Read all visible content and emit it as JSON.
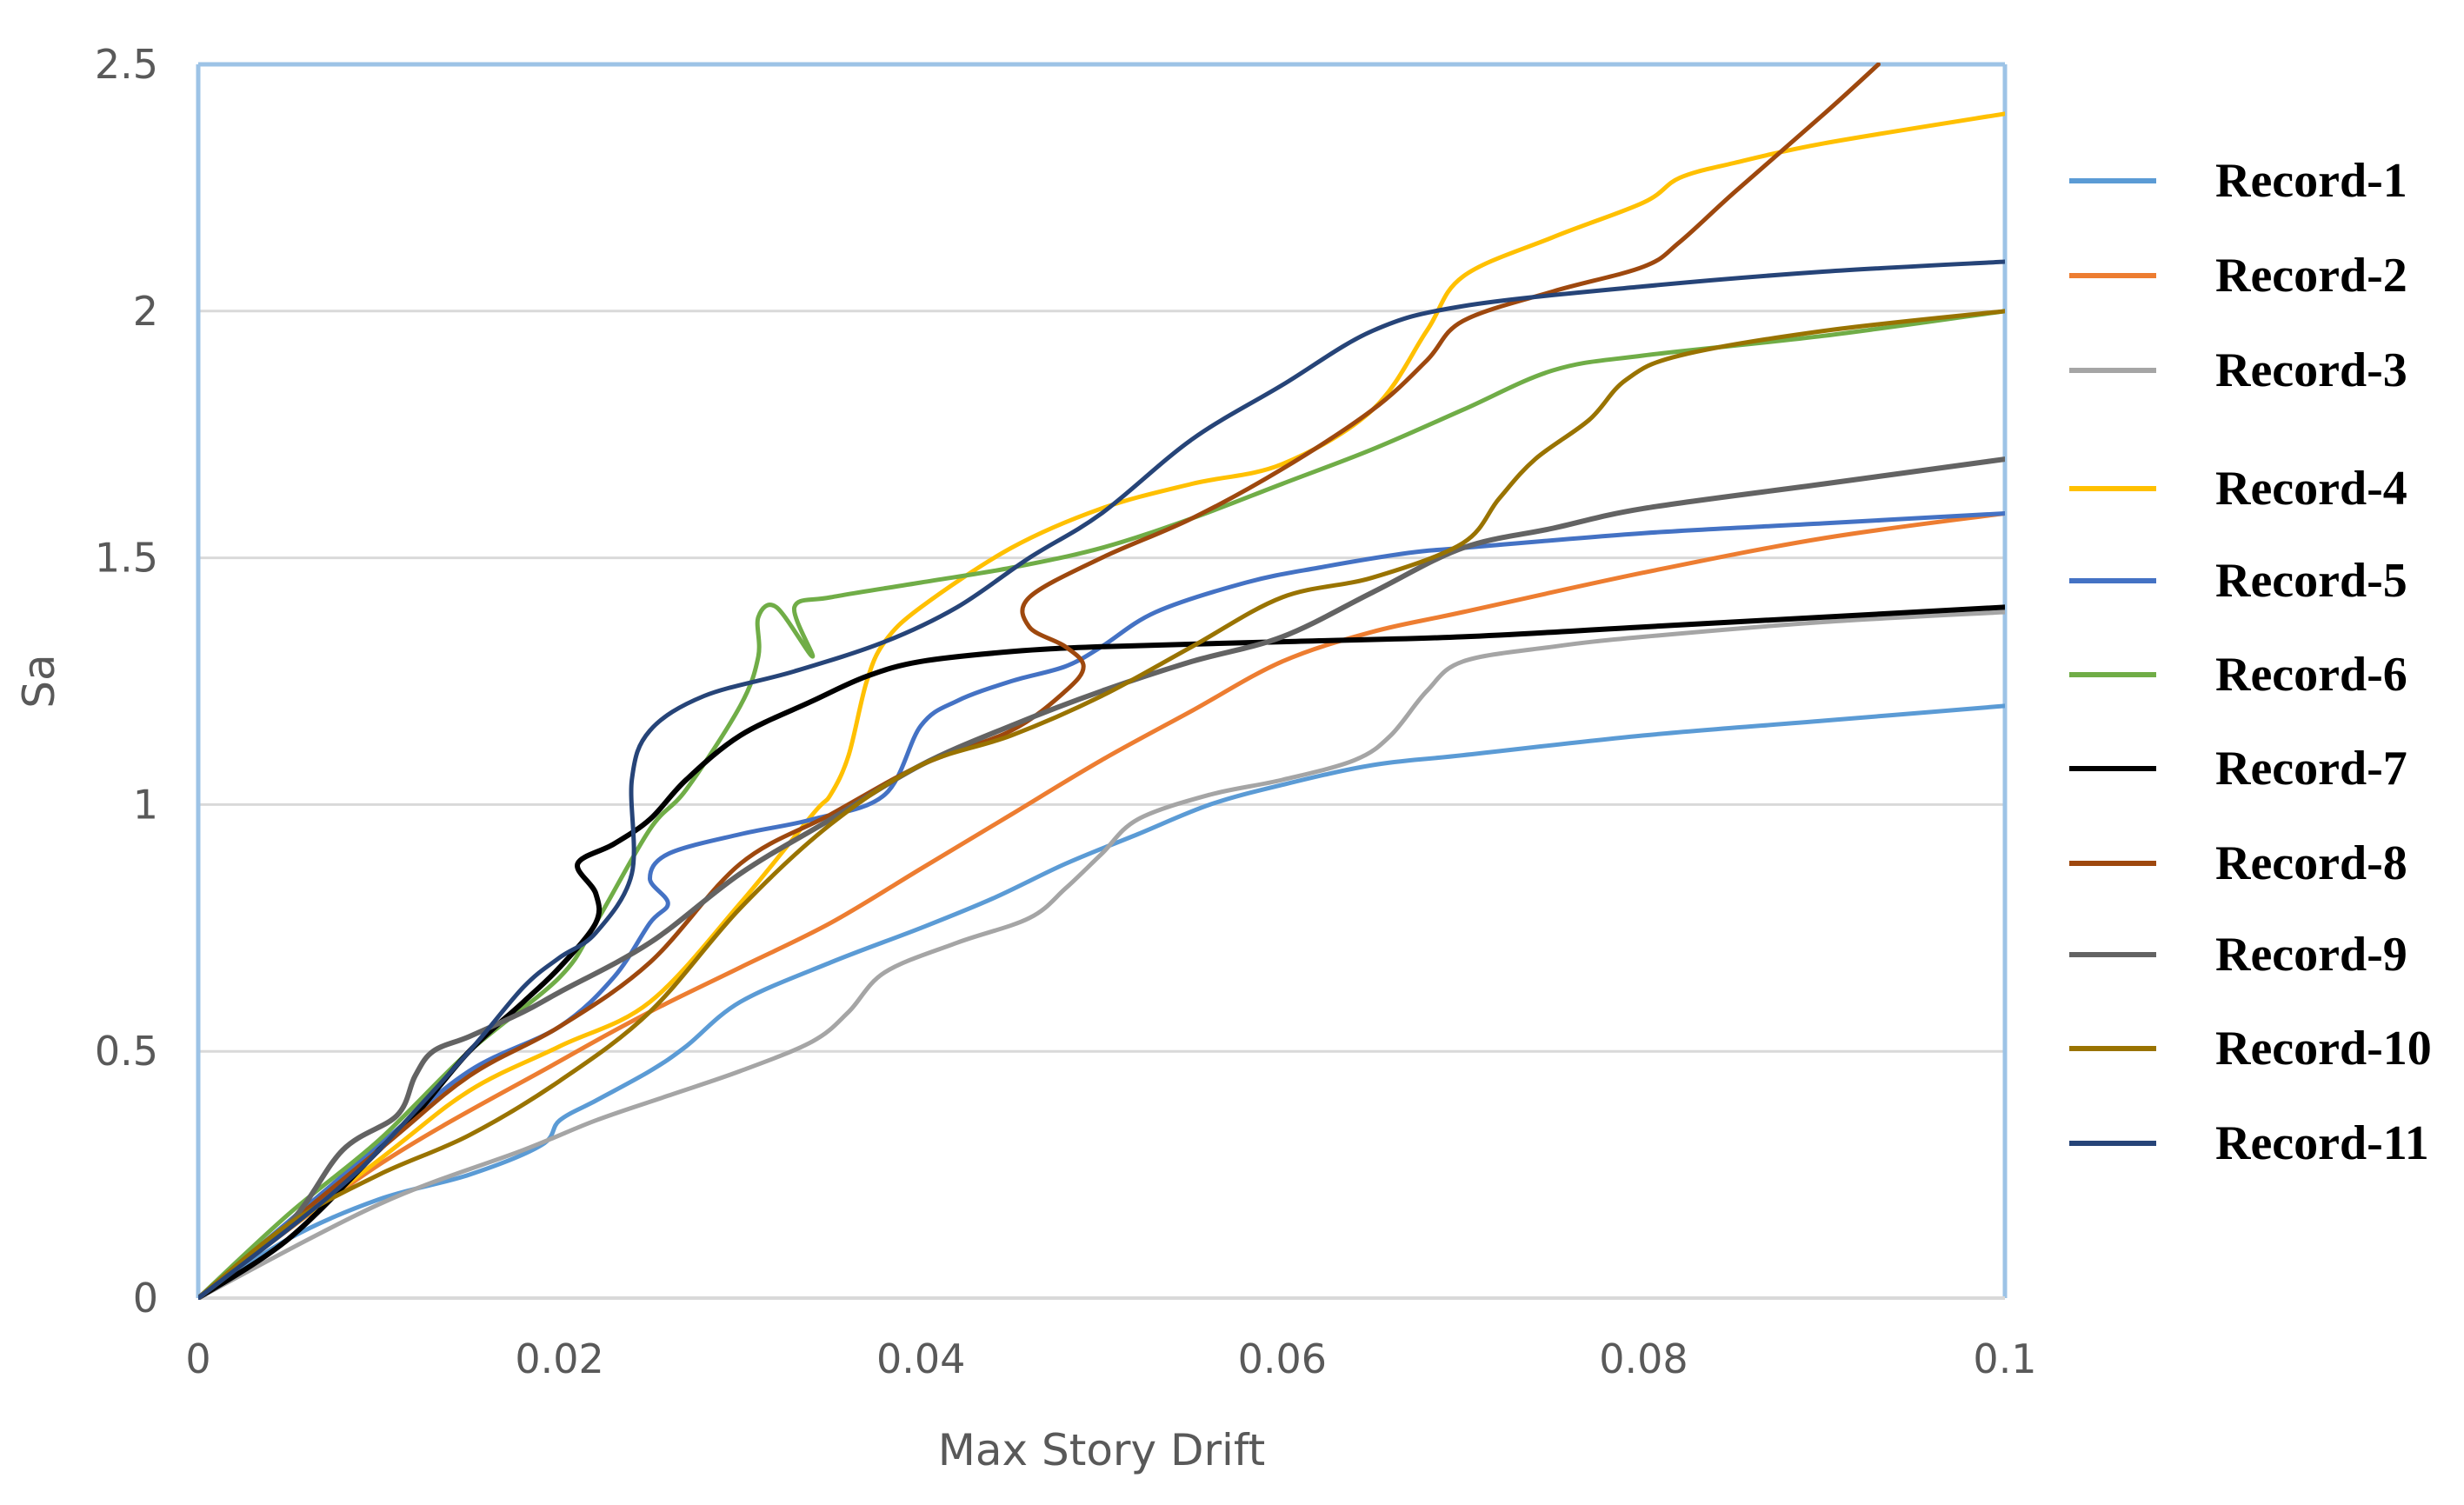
{
  "chart_data": {
    "type": "line",
    "title": "",
    "xlabel": "Max Story Drift",
    "ylabel": "Sa",
    "xlim": [
      0,
      0.1
    ],
    "ylim": [
      0,
      2.5
    ],
    "x_ticks": [
      0,
      0.02,
      0.04,
      0.06,
      0.08,
      0.1
    ],
    "x_tick_labels": [
      "0",
      "0.02",
      "0.04",
      "0.06",
      "0.08",
      "0.1"
    ],
    "y_ticks": [
      0,
      0.5,
      1,
      1.5,
      2,
      2.5
    ],
    "y_tick_labels": [
      "0",
      "0.5",
      "1",
      "1.5",
      "2",
      "2.5"
    ],
    "grid": "horizontal",
    "legend_position": "right",
    "series": [
      {
        "name": "Record-1",
        "color": "#5B9BD5",
        "points": [
          [
            0,
            0
          ],
          [
            0.005,
            0.12
          ],
          [
            0.01,
            0.2
          ],
          [
            0.015,
            0.25
          ],
          [
            0.019,
            0.31
          ],
          [
            0.02,
            0.36
          ],
          [
            0.022,
            0.4
          ],
          [
            0.025,
            0.46
          ],
          [
            0.027,
            0.51
          ],
          [
            0.03,
            0.6
          ],
          [
            0.035,
            0.68
          ],
          [
            0.04,
            0.75
          ],
          [
            0.044,
            0.81
          ],
          [
            0.048,
            0.88
          ],
          [
            0.052,
            0.94
          ],
          [
            0.056,
            1.0
          ],
          [
            0.06,
            1.04
          ],
          [
            0.065,
            1.08
          ],
          [
            0.07,
            1.1
          ],
          [
            0.08,
            1.14
          ],
          [
            0.09,
            1.17
          ],
          [
            0.1,
            1.2
          ]
        ]
      },
      {
        "name": "Record-2",
        "color": "#ED7D31",
        "points": [
          [
            0,
            0
          ],
          [
            0.01,
            0.27
          ],
          [
            0.02,
            0.48
          ],
          [
            0.025,
            0.58
          ],
          [
            0.03,
            0.67
          ],
          [
            0.035,
            0.76
          ],
          [
            0.04,
            0.87
          ],
          [
            0.045,
            0.98
          ],
          [
            0.05,
            1.09
          ],
          [
            0.055,
            1.19
          ],
          [
            0.06,
            1.29
          ],
          [
            0.065,
            1.35
          ],
          [
            0.07,
            1.39
          ],
          [
            0.08,
            1.47
          ],
          [
            0.09,
            1.54
          ],
          [
            0.1,
            1.59
          ]
        ]
      },
      {
        "name": "Record-3",
        "color": "#A5A5A5",
        "points": [
          [
            0,
            0
          ],
          [
            0.01,
            0.19
          ],
          [
            0.018,
            0.3
          ],
          [
            0.022,
            0.36
          ],
          [
            0.026,
            0.41
          ],
          [
            0.03,
            0.46
          ],
          [
            0.034,
            0.52
          ],
          [
            0.036,
            0.58
          ],
          [
            0.038,
            0.66
          ],
          [
            0.042,
            0.72
          ],
          [
            0.046,
            0.77
          ],
          [
            0.048,
            0.83
          ],
          [
            0.05,
            0.9
          ],
          [
            0.052,
            0.97
          ],
          [
            0.056,
            1.02
          ],
          [
            0.06,
            1.05
          ],
          [
            0.064,
            1.09
          ],
          [
            0.066,
            1.14
          ],
          [
            0.068,
            1.23
          ],
          [
            0.07,
            1.29
          ],
          [
            0.075,
            1.32
          ],
          [
            0.08,
            1.34
          ],
          [
            0.09,
            1.37
          ],
          [
            0.1,
            1.39
          ]
        ]
      },
      {
        "name": "Record-4",
        "color": "#FFC000",
        "points": [
          [
            0,
            0
          ],
          [
            0.01,
            0.28
          ],
          [
            0.015,
            0.42
          ],
          [
            0.02,
            0.51
          ],
          [
            0.025,
            0.6
          ],
          [
            0.03,
            0.8
          ],
          [
            0.034,
            0.98
          ],
          [
            0.035,
            1.02
          ],
          [
            0.036,
            1.1
          ],
          [
            0.037,
            1.25
          ],
          [
            0.038,
            1.33
          ],
          [
            0.04,
            1.4
          ],
          [
            0.045,
            1.52
          ],
          [
            0.05,
            1.6
          ],
          [
            0.055,
            1.65
          ],
          [
            0.06,
            1.69
          ],
          [
            0.065,
            1.8
          ],
          [
            0.068,
            1.96
          ],
          [
            0.07,
            2.07
          ],
          [
            0.075,
            2.15
          ],
          [
            0.08,
            2.22
          ],
          [
            0.082,
            2.27
          ],
          [
            0.085,
            2.3
          ],
          [
            0.09,
            2.34
          ],
          [
            0.1,
            2.4
          ]
        ]
      },
      {
        "name": "Record-5",
        "color": "#4472C4",
        "points": [
          [
            0,
            0
          ],
          [
            0.01,
            0.31
          ],
          [
            0.015,
            0.46
          ],
          [
            0.02,
            0.55
          ],
          [
            0.023,
            0.65
          ],
          [
            0.025,
            0.76
          ],
          [
            0.026,
            0.8
          ],
          [
            0.025,
            0.85
          ],
          [
            0.026,
            0.9
          ],
          [
            0.03,
            0.94
          ],
          [
            0.034,
            0.97
          ],
          [
            0.038,
            1.02
          ],
          [
            0.04,
            1.16
          ],
          [
            0.042,
            1.21
          ],
          [
            0.045,
            1.25
          ],
          [
            0.048,
            1.28
          ],
          [
            0.05,
            1.32
          ],
          [
            0.053,
            1.39
          ],
          [
            0.058,
            1.45
          ],
          [
            0.062,
            1.48
          ],
          [
            0.067,
            1.51
          ],
          [
            0.07,
            1.52
          ],
          [
            0.08,
            1.55
          ],
          [
            0.09,
            1.57
          ],
          [
            0.1,
            1.59
          ]
        ]
      },
      {
        "name": "Record-6",
        "color": "#70AD47",
        "points": [
          [
            0,
            0
          ],
          [
            0.005,
            0.17
          ],
          [
            0.01,
            0.32
          ],
          [
            0.015,
            0.5
          ],
          [
            0.02,
            0.65
          ],
          [
            0.022,
            0.76
          ],
          [
            0.025,
            0.95
          ],
          [
            0.027,
            1.03
          ],
          [
            0.03,
            1.2
          ],
          [
            0.031,
            1.3
          ],
          [
            0.031,
            1.38
          ],
          [
            0.032,
            1.4
          ],
          [
            0.034,
            1.3
          ],
          [
            0.033,
            1.4
          ],
          [
            0.035,
            1.42
          ],
          [
            0.04,
            1.45
          ],
          [
            0.045,
            1.48
          ],
          [
            0.05,
            1.52
          ],
          [
            0.055,
            1.58
          ],
          [
            0.06,
            1.65
          ],
          [
            0.065,
            1.72
          ],
          [
            0.07,
            1.8
          ],
          [
            0.075,
            1.88
          ],
          [
            0.08,
            1.91
          ],
          [
            0.09,
            1.95
          ],
          [
            0.1,
            2.0
          ]
        ]
      },
      {
        "name": "Record-7",
        "color": "#000000",
        "points": [
          [
            0,
            0
          ],
          [
            0.005,
            0.12
          ],
          [
            0.01,
            0.3
          ],
          [
            0.012,
            0.37
          ],
          [
            0.015,
            0.5
          ],
          [
            0.018,
            0.6
          ],
          [
            0.02,
            0.67
          ],
          [
            0.022,
            0.76
          ],
          [
            0.022,
            0.82
          ],
          [
            0.021,
            0.88
          ],
          [
            0.023,
            0.92
          ],
          [
            0.025,
            0.97
          ],
          [
            0.027,
            1.05
          ],
          [
            0.03,
            1.14
          ],
          [
            0.034,
            1.21
          ],
          [
            0.037,
            1.26
          ],
          [
            0.04,
            1.29
          ],
          [
            0.045,
            1.31
          ],
          [
            0.05,
            1.32
          ],
          [
            0.06,
            1.33
          ],
          [
            0.07,
            1.34
          ],
          [
            0.08,
            1.36
          ],
          [
            0.09,
            1.38
          ],
          [
            0.1,
            1.4
          ]
        ]
      },
      {
        "name": "Record-8",
        "color": "#9E480E",
        "points": [
          [
            0,
            0
          ],
          [
            0.01,
            0.3
          ],
          [
            0.015,
            0.45
          ],
          [
            0.02,
            0.55
          ],
          [
            0.025,
            0.68
          ],
          [
            0.03,
            0.88
          ],
          [
            0.035,
            0.98
          ],
          [
            0.04,
            1.08
          ],
          [
            0.045,
            1.15
          ],
          [
            0.048,
            1.23
          ],
          [
            0.049,
            1.28
          ],
          [
            0.048,
            1.32
          ],
          [
            0.046,
            1.36
          ],
          [
            0.046,
            1.42
          ],
          [
            0.05,
            1.5
          ],
          [
            0.055,
            1.58
          ],
          [
            0.06,
            1.68
          ],
          [
            0.065,
            1.8
          ],
          [
            0.068,
            1.9
          ],
          [
            0.07,
            1.98
          ],
          [
            0.075,
            2.04
          ],
          [
            0.08,
            2.09
          ],
          [
            0.082,
            2.14
          ],
          [
            0.085,
            2.24
          ],
          [
            0.09,
            2.4
          ],
          [
            0.093,
            2.5
          ]
        ]
      },
      {
        "name": "Record-9",
        "color": "#636363",
        "points": [
          [
            0,
            0
          ],
          [
            0.005,
            0.15
          ],
          [
            0.008,
            0.3
          ],
          [
            0.011,
            0.37
          ],
          [
            0.012,
            0.45
          ],
          [
            0.013,
            0.5
          ],
          [
            0.015,
            0.53
          ],
          [
            0.018,
            0.58
          ],
          [
            0.02,
            0.62
          ],
          [
            0.025,
            0.72
          ],
          [
            0.03,
            0.86
          ],
          [
            0.035,
            0.97
          ],
          [
            0.04,
            1.08
          ],
          [
            0.045,
            1.16
          ],
          [
            0.05,
            1.23
          ],
          [
            0.055,
            1.29
          ],
          [
            0.06,
            1.34
          ],
          [
            0.065,
            1.43
          ],
          [
            0.07,
            1.52
          ],
          [
            0.075,
            1.56
          ],
          [
            0.08,
            1.6
          ],
          [
            0.09,
            1.65
          ],
          [
            0.1,
            1.7
          ]
        ]
      },
      {
        "name": "Record-10",
        "color": "#997300",
        "points": [
          [
            0,
            0
          ],
          [
            0.005,
            0.15
          ],
          [
            0.01,
            0.25
          ],
          [
            0.015,
            0.33
          ],
          [
            0.02,
            0.44
          ],
          [
            0.025,
            0.58
          ],
          [
            0.03,
            0.79
          ],
          [
            0.035,
            0.96
          ],
          [
            0.04,
            1.08
          ],
          [
            0.045,
            1.14
          ],
          [
            0.05,
            1.22
          ],
          [
            0.055,
            1.32
          ],
          [
            0.06,
            1.42
          ],
          [
            0.065,
            1.46
          ],
          [
            0.07,
            1.53
          ],
          [
            0.072,
            1.62
          ],
          [
            0.074,
            1.7
          ],
          [
            0.077,
            1.78
          ],
          [
            0.079,
            1.86
          ],
          [
            0.082,
            1.91
          ],
          [
            0.09,
            1.96
          ],
          [
            0.1,
            2.0
          ]
        ]
      },
      {
        "name": "Record-11",
        "color": "#264478",
        "points": [
          [
            0,
            0
          ],
          [
            0.005,
            0.14
          ],
          [
            0.008,
            0.23
          ],
          [
            0.01,
            0.3
          ],
          [
            0.015,
            0.5
          ],
          [
            0.018,
            0.63
          ],
          [
            0.02,
            0.69
          ],
          [
            0.022,
            0.74
          ],
          [
            0.024,
            0.86
          ],
          [
            0.024,
            1.05
          ],
          [
            0.025,
            1.15
          ],
          [
            0.028,
            1.22
          ],
          [
            0.033,
            1.27
          ],
          [
            0.038,
            1.33
          ],
          [
            0.042,
            1.4
          ],
          [
            0.046,
            1.5
          ],
          [
            0.05,
            1.59
          ],
          [
            0.055,
            1.74
          ],
          [
            0.06,
            1.85
          ],
          [
            0.065,
            1.96
          ],
          [
            0.07,
            2.01
          ],
          [
            0.08,
            2.05
          ],
          [
            0.09,
            2.08
          ],
          [
            0.1,
            2.1
          ]
        ]
      }
    ]
  }
}
